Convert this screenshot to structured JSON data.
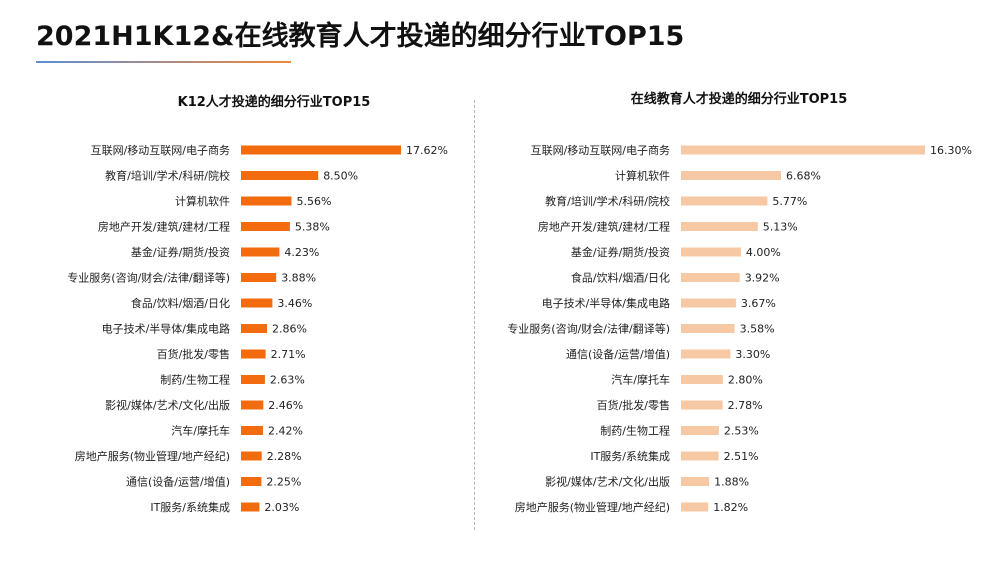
{
  "header": {
    "title": "2021H1K12&在线教育人才投递的细分行业TOP15"
  },
  "chart_data": [
    {
      "type": "bar",
      "orientation": "horizontal",
      "title": "K12人才投递的细分行业TOP15",
      "color": "#f26b0f",
      "unit": "%",
      "categories": [
        "互联网/移动互联网/电子商务",
        "教育/培训/学术/科研/院校",
        "计算机软件",
        "房地产开发/建筑/建材/工程",
        "基金/证券/期货/投资",
        "专业服务(咨询/财会/法律/翻译等)",
        "食品/饮料/烟酒/日化",
        "电子技术/半导体/集成电路",
        "百货/批发/零售",
        "制药/生物工程",
        "影视/媒体/艺术/文化/出版",
        "汽车/摩托车",
        "房地产服务(物业管理/地产经纪)",
        "通信(设备/运营/增值)",
        "IT服务/系统集成"
      ],
      "values": [
        17.62,
        8.5,
        5.56,
        5.38,
        4.23,
        3.88,
        3.46,
        2.86,
        2.71,
        2.63,
        2.46,
        2.42,
        2.28,
        2.25,
        2.03
      ],
      "value_labels": [
        "17.62%",
        "8.50%",
        "5.56%",
        "5.38%",
        "4.23%",
        "3.88%",
        "3.46%",
        "2.86%",
        "2.71%",
        "2.63%",
        "2.46%",
        "2.42%",
        "2.28%",
        "2.25%",
        "2.03%"
      ]
    },
    {
      "type": "bar",
      "orientation": "horizontal",
      "title": "在线教育人才投递的细分行业TOP15",
      "color": "#f7c8a4",
      "unit": "%",
      "categories": [
        "互联网/移动互联网/电子商务",
        "计算机软件",
        "教育/培训/学术/科研/院校",
        "房地产开发/建筑/建材/工程",
        "基金/证券/期货/投资",
        "食品/饮料/烟酒/日化",
        "电子技术/半导体/集成电路",
        "专业服务(咨询/财会/法律/翻译等)",
        "通信(设备/运营/增值)",
        "汽车/摩托车",
        "百货/批发/零售",
        "制药/生物工程",
        "IT服务/系统集成",
        "影视/媒体/艺术/文化/出版",
        "房地产服务(物业管理/地产经纪)"
      ],
      "values": [
        16.3,
        6.68,
        5.77,
        5.13,
        4.0,
        3.92,
        3.67,
        3.58,
        3.3,
        2.8,
        2.78,
        2.53,
        2.51,
        1.88,
        1.82
      ],
      "value_labels": [
        "16.30%",
        "6.68%",
        "5.77%",
        "5.13%",
        "4.00%",
        "3.92%",
        "3.67%",
        "3.58%",
        "3.30%",
        "2.80%",
        "2.78%",
        "2.53%",
        "2.51%",
        "1.88%",
        "1.82%"
      ]
    }
  ]
}
